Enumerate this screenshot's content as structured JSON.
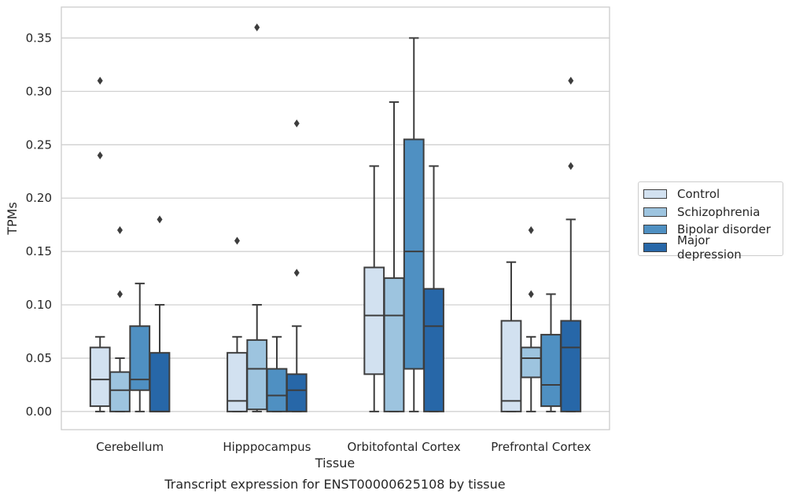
{
  "chart_data": {
    "type": "box",
    "title": "",
    "xlabel": "Tissue",
    "ylabel": "TPMs",
    "caption": "Transcript expression for ENST00000625108 by tissue",
    "ylim": [
      -0.017,
      0.379
    ],
    "yticks": [
      "0.00",
      "0.05",
      "0.10",
      "0.15",
      "0.20",
      "0.25",
      "0.30",
      "0.35"
    ],
    "grid": true,
    "legend_position": "right",
    "categories": [
      "Cerebellum",
      "Hipppocampus",
      "Orbitofontal Cortex",
      "Prefrontal Cortex"
    ],
    "series": [
      {
        "name": "Control",
        "color": "#d2e1f0",
        "boxes": [
          {
            "whislo": 0.0,
            "q1": 0.005,
            "med": 0.03,
            "q3": 0.06,
            "whishi": 0.07,
            "fliers": [
              0.24,
              0.31
            ]
          },
          {
            "whislo": 0.0,
            "q1": 0.0,
            "med": 0.01,
            "q3": 0.055,
            "whishi": 0.07,
            "fliers": [
              0.16
            ]
          },
          {
            "whislo": 0.0,
            "q1": 0.035,
            "med": 0.09,
            "q3": 0.135,
            "whishi": 0.23,
            "fliers": []
          },
          {
            "whislo": 0.0,
            "q1": 0.0,
            "med": 0.01,
            "q3": 0.085,
            "whishi": 0.14,
            "fliers": []
          }
        ]
      },
      {
        "name": "Schizophrenia",
        "color": "#9dc4df",
        "boxes": [
          {
            "whislo": 0.0,
            "q1": 0.0,
            "med": 0.02,
            "q3": 0.037,
            "whishi": 0.05,
            "fliers": [
              0.11,
              0.17
            ]
          },
          {
            "whislo": 0.0,
            "q1": 0.002,
            "med": 0.04,
            "q3": 0.067,
            "whishi": 0.1,
            "fliers": [
              0.36
            ]
          },
          {
            "whislo": 0.0,
            "q1": 0.0,
            "med": 0.09,
            "q3": 0.125,
            "whishi": 0.29,
            "fliers": []
          },
          {
            "whislo": 0.0,
            "q1": 0.032,
            "med": 0.05,
            "q3": 0.06,
            "whishi": 0.07,
            "fliers": [
              0.11,
              0.17
            ]
          }
        ]
      },
      {
        "name": "Bipolar disorder",
        "color": "#4f90c2",
        "boxes": [
          {
            "whislo": 0.0,
            "q1": 0.02,
            "med": 0.03,
            "q3": 0.08,
            "whishi": 0.12,
            "fliers": []
          },
          {
            "whislo": 0.0,
            "q1": 0.0,
            "med": 0.015,
            "q3": 0.04,
            "whishi": 0.07,
            "fliers": []
          },
          {
            "whislo": 0.0,
            "q1": 0.04,
            "med": 0.15,
            "q3": 0.255,
            "whishi": 0.35,
            "fliers": []
          },
          {
            "whislo": 0.0,
            "q1": 0.005,
            "med": 0.025,
            "q3": 0.072,
            "whishi": 0.11,
            "fliers": []
          }
        ]
      },
      {
        "name": "Major depression",
        "color": "#2767a8",
        "boxes": [
          {
            "whislo": 0.0,
            "q1": 0.0,
            "med": 0.0,
            "q3": 0.055,
            "whishi": 0.1,
            "fliers": [
              0.18
            ]
          },
          {
            "whislo": 0.0,
            "q1": 0.0,
            "med": 0.02,
            "q3": 0.035,
            "whishi": 0.08,
            "fliers": [
              0.13,
              0.27
            ]
          },
          {
            "whislo": 0.0,
            "q1": 0.0,
            "med": 0.08,
            "q3": 0.115,
            "whishi": 0.23,
            "fliers": []
          },
          {
            "whislo": 0.0,
            "q1": 0.0,
            "med": 0.06,
            "q3": 0.085,
            "whishi": 0.18,
            "fliers": [
              0.23,
              0.31
            ]
          }
        ]
      }
    ]
  }
}
